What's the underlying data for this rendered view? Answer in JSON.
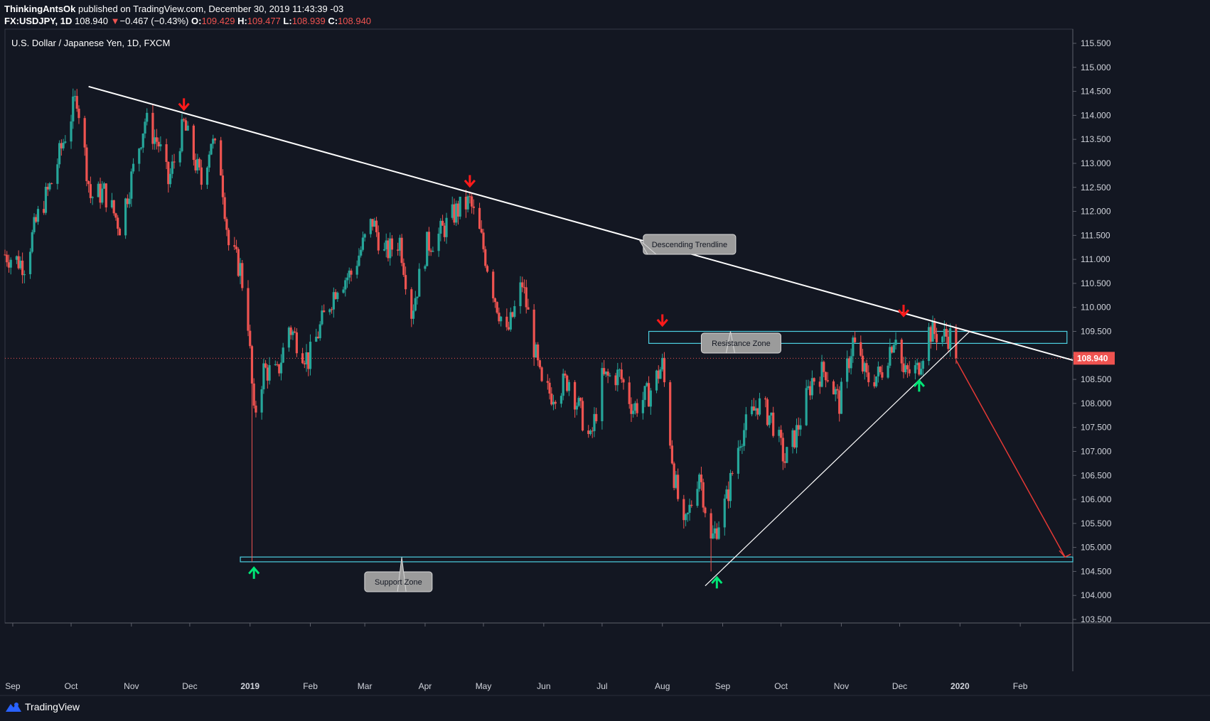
{
  "header": {
    "user": "ThinkingAntsOk",
    "published": "published on TradingView.com, December 30, 2019 11:43:39 -03",
    "symbol": "FX:USDJPY, 1D",
    "last": "108.940",
    "change_arrow": "▼",
    "change": "−0.467 (−0.43%)",
    "o_label": "O:",
    "o_value": "109.429",
    "h_label": "H:",
    "h_value": "109.477",
    "l_label": "L:",
    "l_value": "108.939",
    "c_label": "C:",
    "c_value": "108.940"
  },
  "brand": {
    "name": "TradingView",
    "icon": "tradingview-logo-icon"
  },
  "colors": {
    "background": "#131722",
    "up": "#26a69a",
    "down": "#ef5350",
    "zone": "#4dd0e1",
    "trendline": "#ffffff",
    "arrow_down": "#ff1a1a",
    "arrow_up": "#00e676",
    "projection": "#e53935",
    "price_tag": "#ef5350"
  },
  "chart_data": {
    "type": "candlestick",
    "title": "U.S. Dollar / Japanese Yen, 1D, FXCM",
    "ylim": [
      103.5,
      115.5
    ],
    "y_ticks": [
      "103.500",
      "104.000",
      "104.500",
      "105.000",
      "105.500",
      "106.000",
      "106.500",
      "107.000",
      "107.500",
      "108.000",
      "108.500",
      "109.000",
      "109.500",
      "110.000",
      "110.500",
      "111.000",
      "111.500",
      "112.000",
      "112.500",
      "113.000",
      "113.500",
      "114.000",
      "114.500",
      "115.000",
      "115.500"
    ],
    "x_ticks": [
      "Sep",
      "Oct",
      "Nov",
      "Dec",
      "2019",
      "Feb",
      "Mar",
      "Apr",
      "May",
      "Jun",
      "Jul",
      "Aug",
      "Sep",
      "Oct",
      "Nov",
      "Dec",
      "2020",
      "Feb"
    ],
    "x_range": [
      "2018-08-28",
      "2020-02-28"
    ],
    "last_price": "108.940",
    "anchors": [
      [
        "2018-08-28",
        111.1
      ],
      [
        "2018-09-07",
        110.9
      ],
      [
        "2018-09-14",
        111.9
      ],
      [
        "2018-09-21",
        112.6
      ],
      [
        "2018-09-28",
        113.6
      ],
      [
        "2018-10-04",
        114.4
      ],
      [
        "2018-10-11",
        112.3
      ],
      [
        "2018-10-18",
        112.4
      ],
      [
        "2018-10-26",
        111.7
      ],
      [
        "2018-11-01",
        112.7
      ],
      [
        "2018-11-08",
        113.9
      ],
      [
        "2018-11-15",
        113.4
      ],
      [
        "2018-11-20",
        112.6
      ],
      [
        "2018-11-28",
        113.8
      ],
      [
        "2018-12-07",
        112.6
      ],
      [
        "2018-12-12",
        113.5
      ],
      [
        "2018-12-17",
        112.9
      ],
      [
        "2018-12-21",
        111.3
      ],
      [
        "2018-12-27",
        110.8
      ],
      [
        "2018-12-31",
        109.7
      ],
      [
        "2019-01-03",
        107.7
      ],
      [
        "2019-01-08",
        108.7
      ],
      [
        "2019-01-15",
        108.6
      ],
      [
        "2019-01-21",
        109.6
      ],
      [
        "2019-01-31",
        108.9
      ],
      [
        "2019-02-08",
        109.8
      ],
      [
        "2019-02-15",
        110.5
      ],
      [
        "2019-02-22",
        110.7
      ],
      [
        "2019-03-05",
        111.8
      ],
      [
        "2019-03-11",
        111.1
      ],
      [
        "2019-03-19",
        111.4
      ],
      [
        "2019-03-25",
        109.9
      ],
      [
        "2019-04-02",
        111.3
      ],
      [
        "2019-04-08",
        111.5
      ],
      [
        "2019-04-17",
        112.0
      ],
      [
        "2019-04-24",
        112.2
      ],
      [
        "2019-04-30",
        111.4
      ],
      [
        "2019-05-07",
        110.2
      ],
      [
        "2019-05-13",
        109.4
      ],
      [
        "2019-05-21",
        110.5
      ],
      [
        "2019-05-31",
        108.3
      ],
      [
        "2019-06-05",
        108.2
      ],
      [
        "2019-06-14",
        108.5
      ],
      [
        "2019-06-25",
        107.2
      ],
      [
        "2019-07-01",
        108.5
      ],
      [
        "2019-07-10",
        108.6
      ],
      [
        "2019-07-17",
        107.9
      ],
      [
        "2019-07-25",
        108.2
      ],
      [
        "2019-08-01",
        108.8
      ],
      [
        "2019-08-07",
        106.5
      ],
      [
        "2019-08-12",
        105.3
      ],
      [
        "2019-08-20",
        106.6
      ],
      [
        "2019-08-26",
        105.1
      ],
      [
        "2019-09-03",
        106.0
      ],
      [
        "2019-09-10",
        107.3
      ],
      [
        "2019-09-19",
        108.0
      ],
      [
        "2019-09-26",
        107.7
      ],
      [
        "2019-10-03",
        106.8
      ],
      [
        "2019-10-09",
        107.4
      ],
      [
        "2019-10-17",
        108.5
      ],
      [
        "2019-10-24",
        108.7
      ],
      [
        "2019-10-31",
        108.0
      ],
      [
        "2019-11-07",
        109.3
      ],
      [
        "2019-11-14",
        108.5
      ],
      [
        "2019-11-21",
        108.6
      ],
      [
        "2019-11-29",
        109.5
      ],
      [
        "2019-12-03",
        108.6
      ],
      [
        "2019-12-10",
        108.7
      ],
      [
        "2019-12-16",
        109.5
      ],
      [
        "2019-12-23",
        109.4
      ],
      [
        "2019-12-27",
        109.4
      ],
      [
        "2019-12-30",
        108.94
      ]
    ],
    "spikes": [
      [
        "2019-01-02",
        104.7
      ],
      [
        "2019-08-26",
        104.5
      ],
      [
        "2018-10-04",
        114.55
      ],
      [
        "2019-04-24",
        112.4
      ]
    ],
    "annotations": {
      "descending_trendline": {
        "label": "Descending Trendline",
        "from": [
          "2018-10-10",
          114.6
        ],
        "to": [
          "2020-02-28",
          108.9
        ]
      },
      "ascending_trendline": {
        "from": [
          "2019-08-23",
          104.2
        ],
        "to": [
          "2020-01-06",
          109.5
        ]
      },
      "resistance_zone": {
        "label": "Resistance Zone",
        "from": "2019-07-25",
        "to": "2020-02-25",
        "low": 109.25,
        "high": 109.5
      },
      "support_zone": {
        "label": "Support Zone",
        "from": "2018-12-27",
        "to": "2020-02-28",
        "low": 104.7,
        "high": 104.8
      },
      "sell_arrows": [
        [
          "2018-11-28",
          114.2
        ],
        [
          "2019-04-24",
          112.6
        ],
        [
          "2019-08-01",
          109.7
        ],
        [
          "2019-12-03",
          109.9
        ]
      ],
      "buy_arrows": [
        [
          "2019-01-03",
          104.5
        ],
        [
          "2019-08-29",
          104.3
        ],
        [
          "2019-12-11",
          108.4
        ]
      ],
      "projection": {
        "from": [
          "2019-12-30",
          108.9
        ],
        "to": [
          "2020-02-24",
          104.8
        ]
      }
    }
  }
}
